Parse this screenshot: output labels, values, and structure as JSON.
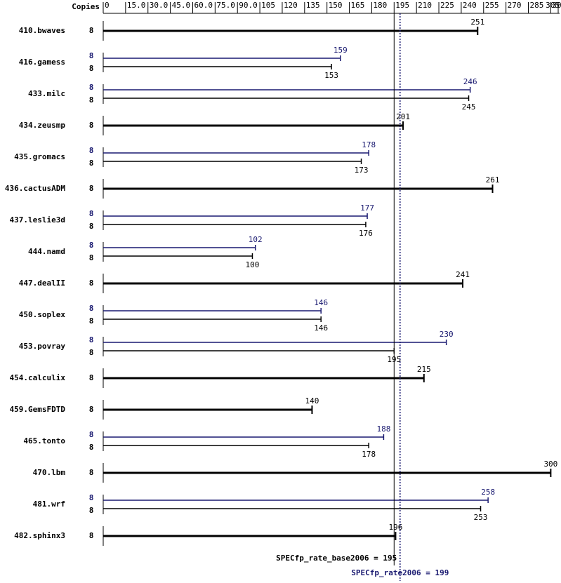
{
  "chart_data": {
    "type": "bar",
    "orientation": "horizontal",
    "axis_label": "Copies",
    "categories": [
      "410.bwaves",
      "416.gamess",
      "433.milc",
      "434.zeusmp",
      "435.gromacs",
      "436.cactusADM",
      "437.leslie3d",
      "444.namd",
      "447.dealII",
      "450.soplex",
      "453.povray",
      "454.calculix",
      "459.GemsFDTD",
      "465.tonto",
      "470.lbm",
      "481.wrf",
      "482.sphinx3"
    ],
    "series": [
      {
        "color": "#000000",
        "copies": [
          8,
          8,
          8,
          8,
          8,
          8,
          8,
          8,
          8,
          8,
          8,
          8,
          8,
          8,
          8,
          8,
          8
        ],
        "values": [
          251,
          153,
          245,
          201,
          173,
          261,
          176,
          100,
          241,
          146,
          195,
          215,
          140,
          178,
          300,
          253,
          196
        ]
      },
      {
        "color": "#191970",
        "copies": [
          null,
          8,
          8,
          null,
          8,
          null,
          8,
          8,
          null,
          8,
          8,
          null,
          null,
          8,
          null,
          8,
          null
        ],
        "values": [
          null,
          159,
          246,
          null,
          178,
          null,
          177,
          102,
          null,
          146,
          230,
          null,
          null,
          188,
          null,
          258,
          null
        ]
      }
    ],
    "xlim": [
      0,
      305
    ],
    "xticks": [
      0,
      {
        "value": 15,
        "label": "15.0"
      },
      {
        "value": 30,
        "label": "30.0"
      },
      {
        "value": 45,
        "label": "45.0"
      },
      {
        "value": 60,
        "label": "60.0"
      },
      {
        "value": 75,
        "label": "75.0"
      },
      {
        "value": 90,
        "label": "90.0"
      },
      105,
      120,
      135,
      150,
      165,
      180,
      195,
      210,
      225,
      240,
      255,
      270,
      285,
      300,
      305
    ],
    "reference_lines": [
      {
        "label": "SPECfp_rate_base2006 = 195",
        "value": 195,
        "color": "#000000"
      },
      {
        "label": "SPECfp_rate2006 = 199",
        "value": 199,
        "color": "#191970"
      }
    ]
  }
}
